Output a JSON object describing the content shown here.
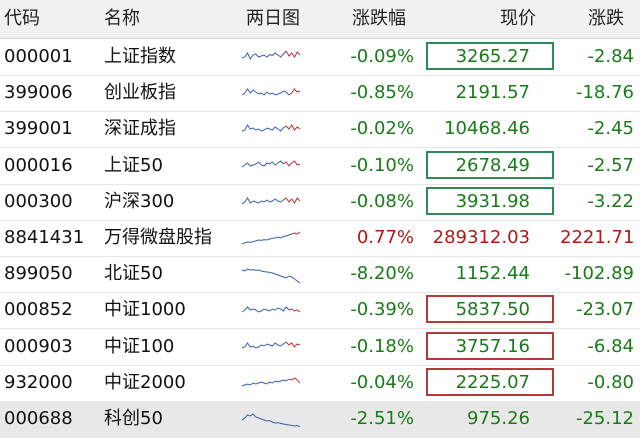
{
  "columns": {
    "code": "代码",
    "name": "名称",
    "chart": "两日图",
    "pct": "涨跌幅",
    "price": "现价",
    "change": "涨跌"
  },
  "rows": [
    {
      "code": "000001",
      "name": "上证指数",
      "pct": "-0.09%",
      "price": "3265.27",
      "change": "-2.84",
      "dir": "down",
      "box": "green",
      "spark": [
        0.55,
        0.5,
        0.3,
        0.6,
        0.4,
        0.35,
        0.5,
        0.45,
        0.4,
        0.5,
        0.38,
        0.42,
        0.3,
        0.4,
        0.5,
        0.35,
        0.2,
        0.45,
        0.3,
        0.5,
        0.25,
        0.4
      ],
      "spark_red_from": 17
    },
    {
      "code": "399006",
      "name": "创业板指",
      "pct": "-0.85%",
      "price": "2191.57",
      "change": "-18.76",
      "dir": "down",
      "box": "",
      "spark": [
        0.6,
        0.5,
        0.3,
        0.5,
        0.35,
        0.45,
        0.55,
        0.5,
        0.6,
        0.45,
        0.55,
        0.5,
        0.6,
        0.55,
        0.5,
        0.4,
        0.45,
        0.6,
        0.5,
        0.3,
        0.45,
        0.4
      ],
      "spark_red_from": 18
    },
    {
      "code": "399001",
      "name": "深证成指",
      "pct": "-0.02%",
      "price": "10468.46",
      "change": "-2.45",
      "dir": "down",
      "box": "",
      "spark": [
        0.6,
        0.55,
        0.3,
        0.5,
        0.45,
        0.55,
        0.5,
        0.6,
        0.55,
        0.45,
        0.5,
        0.55,
        0.4,
        0.5,
        0.6,
        0.45,
        0.35,
        0.5,
        0.3,
        0.55,
        0.4,
        0.5
      ],
      "spark_red_from": 17
    },
    {
      "code": "000016",
      "name": "上证50",
      "pct": "-0.10%",
      "price": "2678.49",
      "change": "-2.57",
      "dir": "down",
      "box": "green",
      "spark": [
        0.55,
        0.45,
        0.35,
        0.5,
        0.45,
        0.4,
        0.3,
        0.45,
        0.5,
        0.35,
        0.4,
        0.3,
        0.45,
        0.35,
        0.25,
        0.4,
        0.3,
        0.5,
        0.35,
        0.25,
        0.45,
        0.4
      ],
      "spark_red_from": 16
    },
    {
      "code": "000300",
      "name": "沪深300",
      "pct": "-0.08%",
      "price": "3931.98",
      "change": "-3.22",
      "dir": "down",
      "box": "green",
      "spark": [
        0.6,
        0.5,
        0.3,
        0.55,
        0.45,
        0.5,
        0.55,
        0.45,
        0.5,
        0.4,
        0.5,
        0.45,
        0.35,
        0.45,
        0.5,
        0.4,
        0.3,
        0.5,
        0.35,
        0.55,
        0.3,
        0.45
      ],
      "spark_red_from": 16
    },
    {
      "code": "8841431",
      "name": "万得微盘股指",
      "pct": "0.77%",
      "price": "289312.03",
      "change": "2221.71",
      "dir": "up",
      "box": "",
      "spark": [
        0.8,
        0.75,
        0.7,
        0.72,
        0.68,
        0.65,
        0.6,
        0.62,
        0.58,
        0.6,
        0.55,
        0.52,
        0.5,
        0.45,
        0.5,
        0.42,
        0.4,
        0.35,
        0.3,
        0.25,
        0.3,
        0.2
      ],
      "spark_red_from": 19
    },
    {
      "code": "899050",
      "name": "北证50",
      "pct": "-8.20%",
      "price": "1152.44",
      "change": "-102.89",
      "dir": "down",
      "box": "",
      "spark": [
        0.3,
        0.35,
        0.25,
        0.3,
        0.28,
        0.32,
        0.3,
        0.35,
        0.38,
        0.4,
        0.42,
        0.45,
        0.5,
        0.55,
        0.6,
        0.65,
        0.7,
        0.6,
        0.65,
        0.75,
        0.85,
        0.95
      ],
      "spark_red_from": 22
    },
    {
      "code": "000852",
      "name": "中证1000",
      "pct": "-0.39%",
      "price": "5837.50",
      "change": "-23.07",
      "dir": "down",
      "box": "red",
      "spark": [
        0.6,
        0.5,
        0.35,
        0.5,
        0.45,
        0.5,
        0.6,
        0.55,
        0.45,
        0.5,
        0.55,
        0.45,
        0.5,
        0.4,
        0.45,
        0.55,
        0.35,
        0.5,
        0.45,
        0.55,
        0.5,
        0.6
      ],
      "spark_red_from": 18
    },
    {
      "code": "000903",
      "name": "中证100",
      "pct": "-0.18%",
      "price": "3757.16",
      "change": "-6.84",
      "dir": "down",
      "box": "red",
      "spark": [
        0.55,
        0.5,
        0.3,
        0.5,
        0.45,
        0.55,
        0.5,
        0.4,
        0.45,
        0.35,
        0.4,
        0.45,
        0.3,
        0.4,
        0.45,
        0.35,
        0.25,
        0.4,
        0.3,
        0.5,
        0.35,
        0.4
      ],
      "spark_red_from": 17
    },
    {
      "code": "932000",
      "name": "中证2000",
      "pct": "-0.04%",
      "price": "2225.07",
      "change": "-0.80",
      "dir": "down",
      "box": "red",
      "spark": [
        0.65,
        0.6,
        0.55,
        0.6,
        0.5,
        0.55,
        0.5,
        0.45,
        0.5,
        0.55,
        0.45,
        0.5,
        0.4,
        0.45,
        0.4,
        0.35,
        0.4,
        0.3,
        0.35,
        0.25,
        0.35,
        0.5
      ],
      "spark_red_from": 18
    },
    {
      "code": "000688",
      "name": "科创50",
      "pct": "-2.51%",
      "price": "975.26",
      "change": "-25.12",
      "dir": "down",
      "box": "",
      "selected": true,
      "spark": [
        0.55,
        0.45,
        0.3,
        0.35,
        0.25,
        0.4,
        0.45,
        0.5,
        0.55,
        0.6,
        0.58,
        0.65,
        0.7,
        0.68,
        0.72,
        0.75,
        0.78,
        0.8,
        0.82,
        0.85,
        0.83,
        0.88
      ],
      "spark_red_from": 22
    }
  ],
  "colors": {
    "down": "#1a7a1a",
    "up": "#b01818",
    "spark_blue": "#3a5fb0",
    "spark_red": "#b23030",
    "box_green": "#2f8a57",
    "box_red": "#b23a3a"
  }
}
